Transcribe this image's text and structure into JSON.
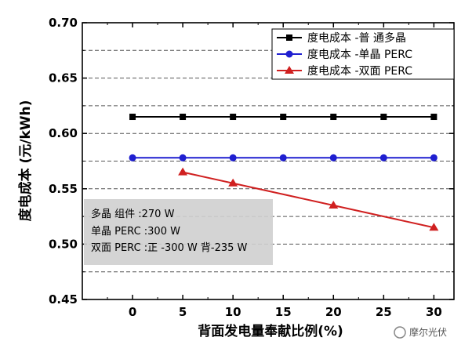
{
  "chart_data": {
    "type": "line",
    "xlabel": "背面发电量奉献比例(%)",
    "ylabel": "度电成本 (元/kWh)",
    "xlim": [
      -5,
      32
    ],
    "ylim": [
      0.45,
      0.7
    ],
    "xticks": [
      0,
      5,
      10,
      15,
      20,
      25,
      30
    ],
    "yticks": [
      0.45,
      0.5,
      0.55,
      0.6,
      0.65,
      0.7
    ],
    "grid": "horizontal, dashed",
    "legend_position": "top-right",
    "series": [
      {
        "name": "度电成本 -普  通多晶",
        "color": "#000000",
        "marker": "square",
        "x": [
          0,
          5,
          10,
          15,
          20,
          25,
          30
        ],
        "y": [
          0.615,
          0.615,
          0.615,
          0.615,
          0.615,
          0.615,
          0.615
        ]
      },
      {
        "name": "度电成本 -单晶 PERC",
        "color": "#1f1fd0",
        "marker": "circle",
        "x": [
          0,
          5,
          10,
          15,
          20,
          25,
          30
        ],
        "y": [
          0.578,
          0.578,
          0.578,
          0.578,
          0.578,
          0.578,
          0.578
        ]
      },
      {
        "name": "度电成本 -双面  PERC",
        "color": "#d02020",
        "marker": "triangle",
        "x": [
          5,
          10,
          20,
          30
        ],
        "y": [
          0.565,
          0.555,
          0.535,
          0.515
        ]
      }
    ],
    "annotation": {
      "lines": [
        "多晶 组件 :270 W",
        "单晶 PERC :300 W",
        "双面  PERC :正 -300 W  背-235 W"
      ]
    }
  },
  "watermark": "摩尔光伏"
}
